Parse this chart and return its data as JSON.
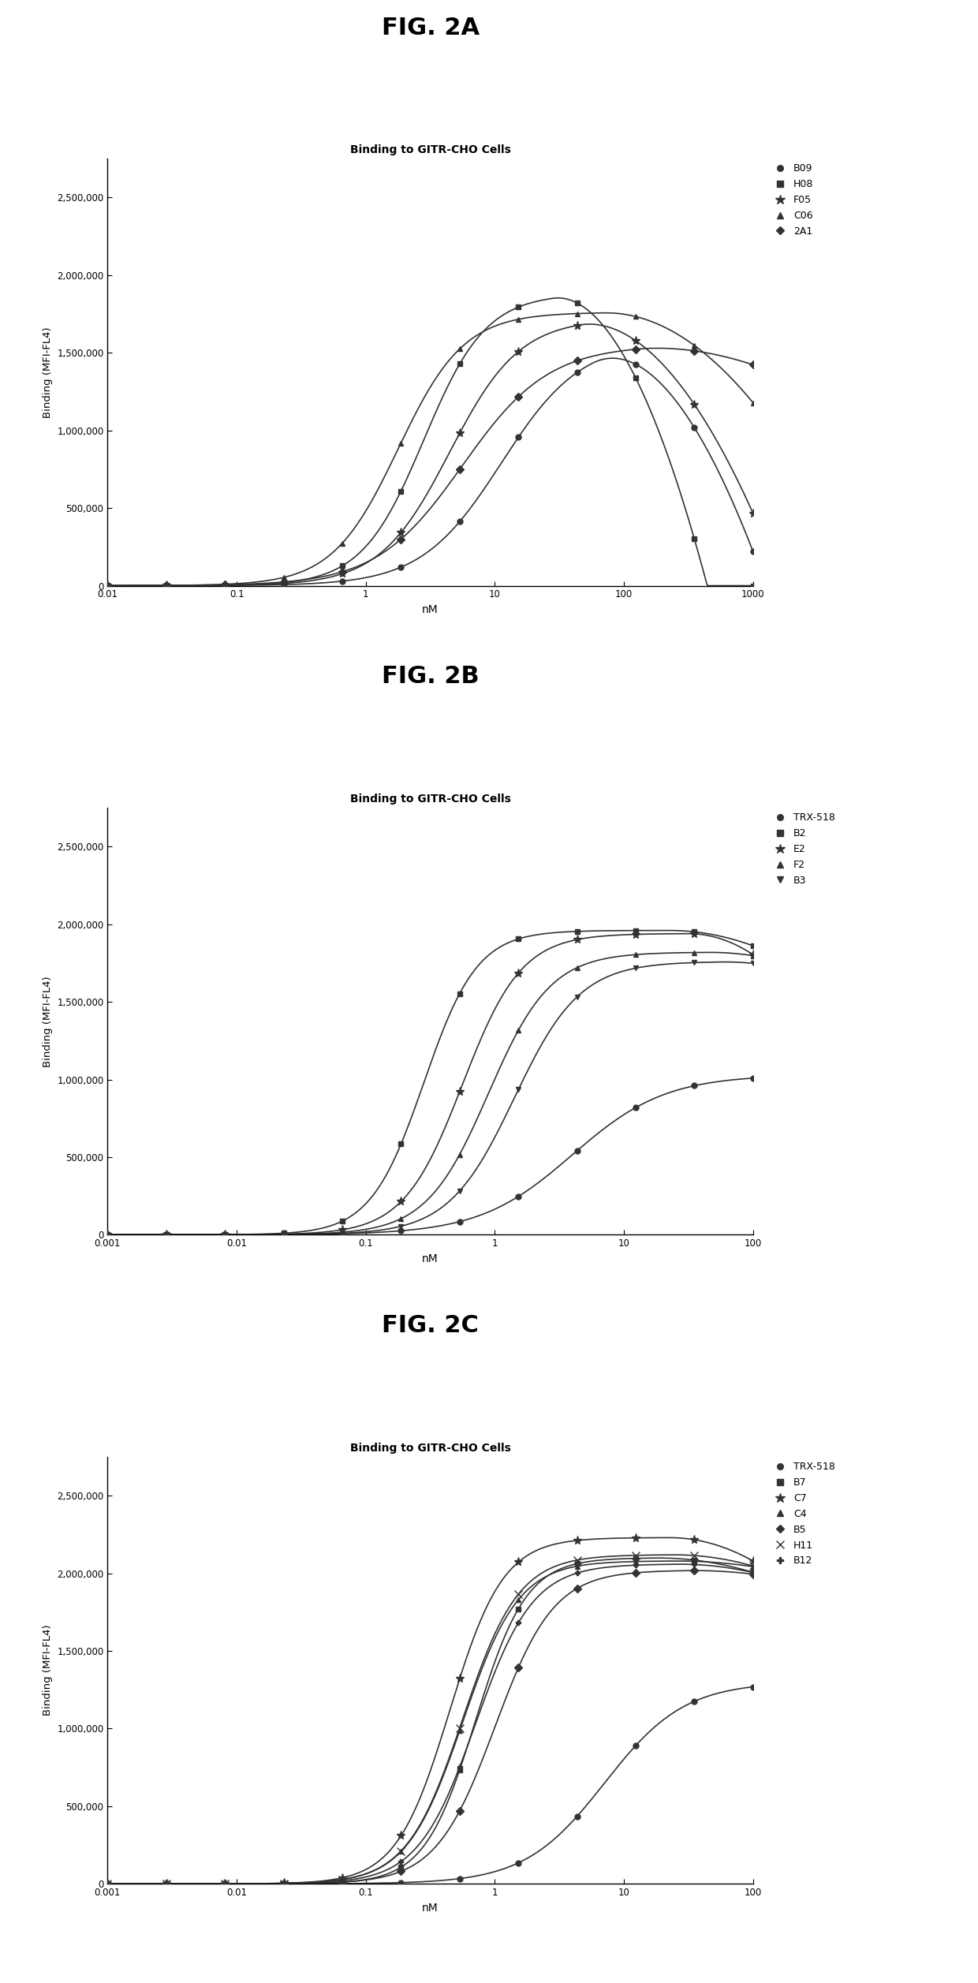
{
  "fig_title_A": "FIG. 2A",
  "fig_title_B": "FIG. 2B",
  "fig_title_C": "FIG. 2C",
  "subplot_title": "Binding to GITR-CHO Cells",
  "ylabel": "Binding (MFI-FL4)",
  "xlabel": "nM",
  "ylim": [
    0,
    2750000
  ],
  "yticks": [
    0,
    500000,
    1000000,
    1500000,
    2000000,
    2500000
  ],
  "ytick_labels": [
    "0",
    "500,000",
    "1,000,000",
    "1,500,000",
    "2,000,000",
    "2,500,000"
  ],
  "panelA": {
    "xlim_log": [
      -2,
      3
    ],
    "xticks_log": [
      -2,
      -1,
      0,
      1,
      2,
      3
    ],
    "xtick_labels": [
      "0.01",
      "0.1",
      "1",
      "10",
      "100",
      "1000"
    ],
    "series": [
      {
        "label": "B09",
        "marker": "o",
        "ec50_log": 1.05,
        "top": 1580000,
        "hill": 1.4,
        "peak_log": 1.75,
        "drop_rate": 0.55
      },
      {
        "label": "H08",
        "marker": "s",
        "ec50_log": 0.45,
        "top": 1880000,
        "hill": 1.8,
        "peak_log": 1.45,
        "drop_rate": 0.7
      },
      {
        "label": "F05",
        "marker": "*",
        "ec50_log": 0.65,
        "top": 1720000,
        "hill": 1.6,
        "peak_log": 1.65,
        "drop_rate": 0.4
      },
      {
        "label": "C06",
        "marker": "^",
        "ec50_log": 0.25,
        "top": 1760000,
        "hill": 1.7,
        "peak_log": 1.85,
        "drop_rate": 0.25
      },
      {
        "label": "2A1",
        "marker": "D",
        "ec50_log": 0.75,
        "top": 1550000,
        "hill": 1.3,
        "peak_log": 2.1,
        "drop_rate": 0.1
      }
    ]
  },
  "panelB": {
    "xlim_log": [
      -3,
      2
    ],
    "xticks_log": [
      -3,
      -2,
      -1,
      0,
      1,
      2
    ],
    "xtick_labels": [
      "0.001",
      "0.01",
      "0.1",
      "1",
      "10",
      "100"
    ],
    "series": [
      {
        "label": "TRX-518",
        "marker": "o",
        "ec50_log": 0.6,
        "top": 1030000,
        "hill": 1.2,
        "peak_log": 2.5,
        "drop_rate": 0.0
      },
      {
        "label": "B2",
        "marker": "s",
        "ec50_log": -0.55,
        "top": 1960000,
        "hill": 2.1,
        "peak_log": 1.35,
        "drop_rate": 0.12
      },
      {
        "label": "E2",
        "marker": "*",
        "ec50_log": -0.25,
        "top": 1940000,
        "hill": 1.9,
        "peak_log": 1.5,
        "drop_rate": 0.28
      },
      {
        "label": "F2",
        "marker": "^",
        "ec50_log": -0.05,
        "top": 1820000,
        "hill": 1.8,
        "peak_log": 1.65,
        "drop_rate": 0.1
      },
      {
        "label": "B3",
        "marker": "v",
        "ec50_log": 0.15,
        "top": 1760000,
        "hill": 1.7,
        "peak_log": 1.75,
        "drop_rate": 0.1
      }
    ]
  },
  "panelC": {
    "xlim_log": [
      -3,
      2
    ],
    "xticks_log": [
      -3,
      -2,
      -1,
      0,
      1,
      2
    ],
    "xtick_labels": [
      "0.001",
      "0.01",
      "0.1",
      "1",
      "10",
      "100"
    ],
    "series": [
      {
        "label": "TRX-518",
        "marker": "o",
        "ec50_log": 0.85,
        "top": 1300000,
        "hill": 1.4,
        "peak_log": 1.85,
        "drop_rate": 0.0
      },
      {
        "label": "B7",
        "marker": "s",
        "ec50_log": -0.15,
        "top": 2100000,
        "hill": 2.2,
        "peak_log": 1.25,
        "drop_rate": 0.08
      },
      {
        "label": "C7",
        "marker": "*",
        "ec50_log": -0.35,
        "top": 2230000,
        "hill": 2.1,
        "peak_log": 1.35,
        "drop_rate": 0.16
      },
      {
        "label": "C4",
        "marker": "^",
        "ec50_log": -0.25,
        "top": 2080000,
        "hill": 2.0,
        "peak_log": 1.4,
        "drop_rate": 0.05
      },
      {
        "label": "B5",
        "marker": "D",
        "ec50_log": 0.0,
        "top": 2020000,
        "hill": 1.9,
        "peak_log": 1.5,
        "drop_rate": 0.05
      },
      {
        "label": "H11",
        "marker": "x",
        "ec50_log": -0.25,
        "top": 2120000,
        "hill": 2.0,
        "peak_log": 1.38,
        "drop_rate": 0.09
      },
      {
        "label": "B12",
        "marker": "P",
        "ec50_log": -0.15,
        "top": 2060000,
        "hill": 1.95,
        "peak_log": 1.42,
        "drop_rate": 0.08
      }
    ]
  },
  "background_color": "#ffffff",
  "line_color": "#333333"
}
